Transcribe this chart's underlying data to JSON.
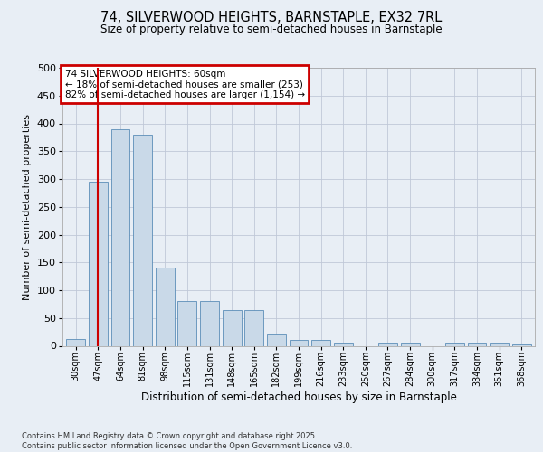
{
  "title1": "74, SILVERWOOD HEIGHTS, BARNSTAPLE, EX32 7RL",
  "title2": "Size of property relative to semi-detached houses in Barnstaple",
  "xlabel": "Distribution of semi-detached houses by size in Barnstaple",
  "ylabel": "Number of semi-detached properties",
  "categories": [
    "30sqm",
    "47sqm",
    "64sqm",
    "81sqm",
    "98sqm",
    "115sqm",
    "131sqm",
    "148sqm",
    "165sqm",
    "182sqm",
    "199sqm",
    "216sqm",
    "233sqm",
    "250sqm",
    "267sqm",
    "284sqm",
    "300sqm",
    "317sqm",
    "334sqm",
    "351sqm",
    "368sqm"
  ],
  "values": [
    12,
    295,
    390,
    380,
    140,
    80,
    80,
    65,
    65,
    20,
    10,
    10,
    5,
    0,
    5,
    5,
    0,
    5,
    5,
    5,
    3
  ],
  "bar_color": "#c9d9e8",
  "bar_edge_color": "#5b8db8",
  "grid_color": "#c0c8d8",
  "bg_color": "#e8eef5",
  "vline_x_index": 1,
  "vline_color": "#cc0000",
  "annotation_lines": [
    "74 SILVERWOOD HEIGHTS: 60sqm",
    "← 18% of semi-detached houses are smaller (253)",
    "82% of semi-detached houses are larger (1,154) →"
  ],
  "annotation_box_edgecolor": "#cc0000",
  "footnote": "Contains HM Land Registry data © Crown copyright and database right 2025.\nContains public sector information licensed under the Open Government Licence v3.0.",
  "ylim": [
    0,
    500
  ],
  "yticks": [
    0,
    50,
    100,
    150,
    200,
    250,
    300,
    350,
    400,
    450,
    500
  ]
}
